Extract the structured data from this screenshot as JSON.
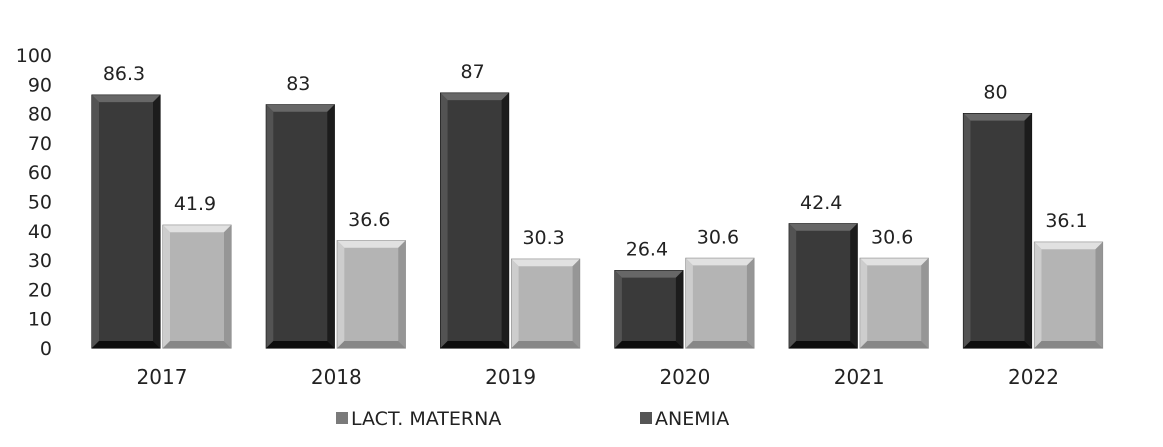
{
  "chart_data": {
    "type": "bar",
    "title": "",
    "xlabel": "",
    "ylabel": "",
    "ylim": [
      0,
      100
    ],
    "yticks": [
      0,
      10,
      20,
      30,
      40,
      50,
      60,
      70,
      80,
      90,
      100
    ],
    "grid": false,
    "legend_position": "bottom",
    "categories": [
      "2017",
      "2018",
      "2019",
      "2020",
      "2021",
      "2022"
    ],
    "series": [
      {
        "name": "LACT. MATERNA",
        "values": [
          86.3,
          83,
          87,
          26.4,
          42.4,
          80
        ],
        "labels": [
          "86.3",
          "83",
          "87",
          "26.4",
          "42.4",
          "80"
        ],
        "color": "#3a3a3a"
      },
      {
        "name": "ANEMIA",
        "values": [
          41.9,
          36.6,
          30.3,
          30.6,
          30.6,
          36.1
        ],
        "labels": [
          "41.9",
          "36.6",
          "30.3",
          "30.6",
          "30.6",
          "36.1"
        ],
        "color": "#b4b4b4"
      }
    ]
  },
  "legend": {
    "items": [
      {
        "label": "LACT. MATERNA",
        "swatch_color": "#7a7a7a"
      },
      {
        "label": "ANEMIA",
        "swatch_color": "#555555"
      }
    ]
  }
}
